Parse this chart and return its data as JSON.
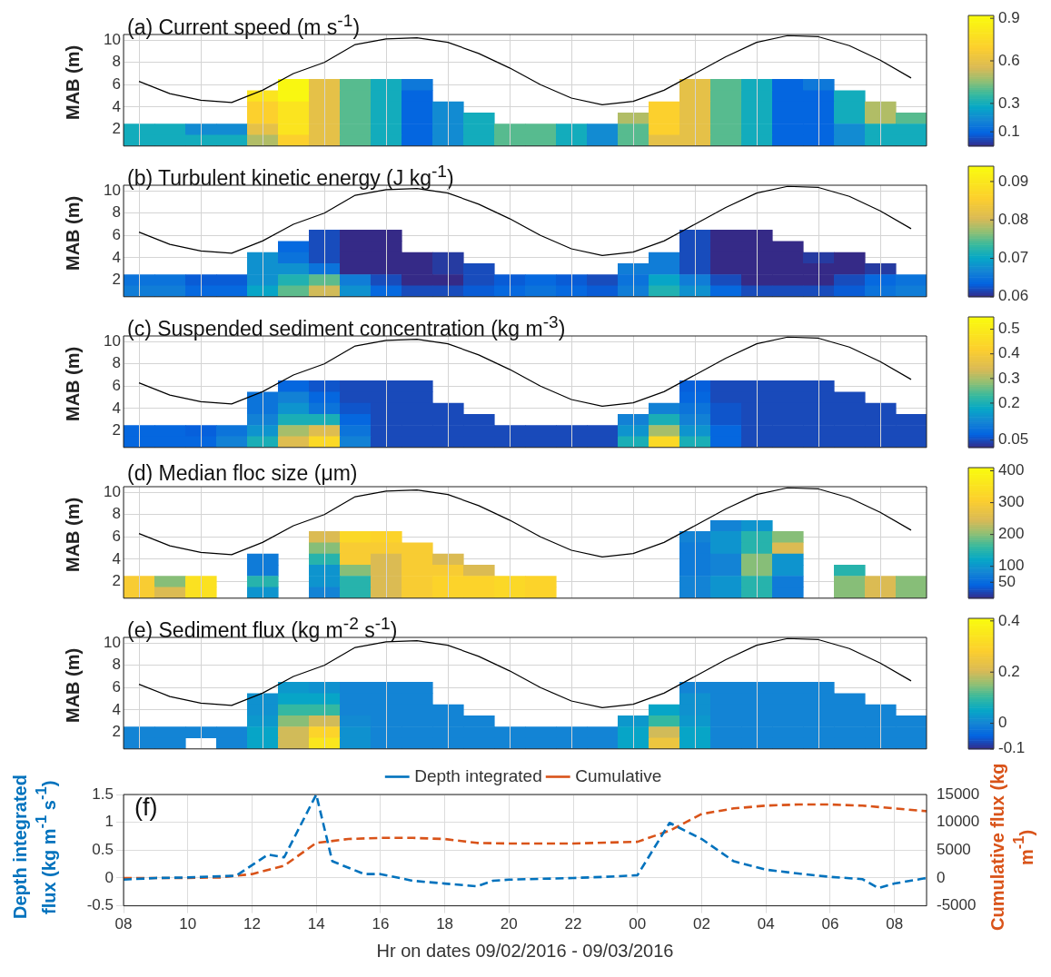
{
  "chart_data": [
    {
      "type": "heatmap",
      "title": "(a) Current speed (m s$^{-1}$)",
      "ylabel": "MAB (m)",
      "tick_labels": "y",
      "grid": "y",
      "categories": [
        null,
        null,
        null,
        null,
        null,
        null,
        null,
        null,
        null,
        null,
        null,
        null,
        null,
        null,
        null,
        null,
        null,
        null,
        null,
        null,
        null,
        null,
        null,
        null,
        null,
        null
      ],
      "y_categories": [
        "6",
        null,
        "4",
        null,
        "2",
        null
      ],
      "cells": [
        [
          null,
          null,
          null,
          null,
          null,
          0.9,
          0.6,
          0.4,
          0.3,
          0.15,
          null,
          null,
          null,
          null,
          null,
          null,
          null,
          null,
          0.6,
          0.4,
          0.3,
          0.1,
          0.15,
          null,
          null,
          null
        ],
        [
          null,
          null,
          null,
          null,
          0.8,
          0.9,
          0.6,
          0.4,
          0.3,
          0.1,
          null,
          null,
          null,
          null,
          null,
          null,
          null,
          null,
          0.6,
          0.4,
          0.3,
          0.1,
          0.1,
          0.3,
          null,
          null
        ],
        [
          null,
          null,
          null,
          null,
          0.7,
          0.8,
          0.6,
          0.4,
          0.3,
          0.1,
          0.2,
          null,
          null,
          null,
          null,
          null,
          null,
          0.7,
          0.6,
          0.4,
          0.3,
          0.1,
          0.1,
          0.3,
          0.5,
          null
        ],
        [
          null,
          null,
          null,
          null,
          0.7,
          0.8,
          0.6,
          0.4,
          0.3,
          0.1,
          0.2,
          0.3,
          null,
          null,
          null,
          null,
          0.5,
          0.7,
          0.6,
          0.4,
          0.3,
          0.1,
          0.1,
          0.3,
          0.5,
          0.4
        ],
        [
          0.3,
          0.3,
          0.2,
          0.2,
          0.6,
          0.8,
          0.6,
          0.4,
          0.3,
          0.1,
          0.2,
          0.3,
          0.4,
          0.4,
          0.3,
          0.2,
          0.4,
          0.7,
          0.6,
          0.4,
          0.3,
          0.1,
          0.1,
          0.2,
          0.3,
          0.3
        ],
        [
          0.3,
          0.3,
          0.3,
          0.3,
          0.5,
          0.7,
          0.6,
          0.4,
          0.3,
          0.1,
          0.2,
          0.3,
          0.4,
          0.4,
          0.3,
          0.2,
          0.4,
          0.6,
          0.6,
          0.4,
          0.3,
          0.1,
          0.1,
          0.2,
          0.3,
          0.3
        ]
      ],
      "clim": [
        0,
        0.92
      ],
      "cticks": [
        0.1,
        0.3,
        0.6,
        0.9
      ]
    },
    {
      "type": "line",
      "tick_labels": "y",
      "grid": true,
      "ylim": [
        0.5,
        10.5
      ],
      "yticks": [
        8,
        10
      ],
      "categories": [
        null,
        null,
        null,
        null,
        null,
        null,
        null,
        null,
        null,
        null,
        null,
        null,
        null,
        null,
        null,
        null,
        null,
        null,
        null,
        null,
        null,
        null,
        null,
        null,
        null,
        null
      ],
      "series": [
        {
          "color": "#000000",
          "values": [
            6.3,
            5.2,
            4.6,
            4.4,
            5.5,
            7,
            8,
            9.6,
            10.1,
            10.2,
            9.8,
            8.8,
            7.5,
            6,
            4.8,
            4.2,
            4.5,
            5.5,
            7,
            8.5,
            9.8,
            10.4,
            10.3,
            9.5,
            8.2,
            6.6
          ]
        }
      ]
    },
    {
      "type": "heatmap",
      "title": "(b) Turbulent kinetic energy (J kg$^{-1}$)",
      "ylabel": "MAB (m)",
      "tick_labels": "y",
      "grid": "y",
      "categories": [
        null,
        null,
        null,
        null,
        null,
        null,
        null,
        null,
        null,
        null,
        null,
        null,
        null,
        null,
        null,
        null,
        null,
        null,
        null,
        null,
        null,
        null,
        null,
        null,
        null,
        null
      ],
      "y_categories": [
        "6",
        null,
        "4",
        null,
        "2",
        null
      ],
      "cells": [
        [
          null,
          null,
          null,
          null,
          null,
          null,
          0.062,
          0.06,
          0.06,
          null,
          null,
          null,
          null,
          null,
          null,
          null,
          null,
          null,
          0.062,
          0.06,
          0.06,
          null,
          null,
          null,
          null,
          null
        ],
        [
          null,
          null,
          null,
          null,
          null,
          0.064,
          0.062,
          0.06,
          0.06,
          null,
          null,
          null,
          null,
          null,
          null,
          null,
          null,
          null,
          0.062,
          0.06,
          0.06,
          0.06,
          null,
          null,
          null,
          null
        ],
        [
          null,
          null,
          null,
          null,
          0.068,
          0.065,
          0.062,
          0.06,
          0.06,
          0.06,
          0.061,
          null,
          null,
          null,
          null,
          null,
          null,
          0.066,
          0.062,
          0.06,
          0.06,
          0.06,
          0.061,
          0.06,
          null,
          null
        ],
        [
          null,
          null,
          null,
          null,
          0.068,
          0.068,
          0.065,
          0.06,
          0.06,
          0.06,
          0.061,
          0.062,
          null,
          null,
          null,
          null,
          0.066,
          0.066,
          0.062,
          0.06,
          0.06,
          0.06,
          0.06,
          0.06,
          0.061,
          null
        ],
        [
          0.065,
          0.065,
          0.063,
          0.063,
          0.068,
          0.072,
          0.075,
          0.066,
          0.062,
          0.06,
          0.06,
          0.062,
          0.063,
          0.064,
          0.063,
          0.062,
          0.065,
          0.07,
          0.066,
          0.062,
          0.06,
          0.06,
          0.06,
          0.062,
          0.064,
          0.065
        ],
        [
          0.066,
          0.066,
          0.064,
          0.064,
          0.07,
          0.075,
          0.08,
          0.068,
          0.064,
          0.062,
          0.062,
          0.063,
          0.064,
          0.065,
          0.064,
          0.063,
          0.066,
          0.072,
          0.068,
          0.064,
          0.062,
          0.062,
          0.062,
          0.063,
          0.065,
          0.066
        ]
      ],
      "clim": [
        0.06,
        0.094
      ],
      "cticks": [
        0.06,
        0.07,
        0.08,
        0.09
      ]
    },
    {
      "type": "line",
      "tick_labels": "y",
      "grid": true,
      "ylim": [
        0.5,
        10.5
      ],
      "yticks": [
        8,
        10
      ],
      "categories": [
        null,
        null,
        null,
        null,
        null,
        null,
        null,
        null,
        null,
        null,
        null,
        null,
        null,
        null,
        null,
        null,
        null,
        null,
        null,
        null,
        null,
        null,
        null,
        null,
        null,
        null
      ],
      "series": [
        {
          "color": "#000000",
          "values": [
            6.3,
            5.2,
            4.6,
            4.4,
            5.5,
            7,
            8,
            9.6,
            10.1,
            10.2,
            9.8,
            8.8,
            7.5,
            6,
            4.8,
            4.2,
            4.5,
            5.5,
            7,
            8.5,
            9.8,
            10.4,
            10.3,
            9.5,
            8.2,
            6.6
          ]
        }
      ]
    },
    {
      "type": "heatmap",
      "title": "(c) Suspended sediment concentration (kg m$^{-3}$)",
      "ylabel": "MAB (m)",
      "tick_labels": "y",
      "grid": "y",
      "categories": [
        null,
        null,
        null,
        null,
        null,
        null,
        null,
        null,
        null,
        null,
        null,
        null,
        null,
        null,
        null,
        null,
        null,
        null,
        null,
        null,
        null,
        null,
        null,
        null,
        null,
        null
      ],
      "y_categories": [
        "6",
        null,
        "4",
        null,
        "2",
        null
      ],
      "cells": [
        [
          null,
          null,
          null,
          null,
          null,
          0.08,
          0.06,
          0.05,
          0.05,
          0.05,
          null,
          null,
          null,
          null,
          null,
          null,
          null,
          null,
          0.07,
          0.05,
          0.05,
          0.05,
          0.05,
          null,
          null,
          null
        ],
        [
          null,
          null,
          null,
          null,
          0.1,
          0.12,
          0.08,
          0.05,
          0.05,
          0.05,
          null,
          null,
          null,
          null,
          null,
          null,
          null,
          null,
          0.08,
          0.05,
          0.05,
          0.05,
          0.05,
          0.05,
          null,
          null
        ],
        [
          null,
          null,
          null,
          null,
          0.1,
          0.15,
          0.1,
          0.06,
          0.05,
          0.05,
          0.05,
          null,
          null,
          null,
          null,
          null,
          null,
          0.12,
          0.1,
          0.06,
          0.05,
          0.05,
          0.05,
          0.05,
          0.05,
          null
        ],
        [
          null,
          null,
          null,
          null,
          0.12,
          0.2,
          0.2,
          0.08,
          0.05,
          0.05,
          0.05,
          0.05,
          null,
          null,
          null,
          null,
          0.12,
          0.2,
          0.12,
          0.06,
          0.05,
          0.05,
          0.05,
          0.05,
          0.05,
          0.05
        ],
        [
          0.08,
          0.08,
          0.07,
          0.1,
          0.15,
          0.3,
          0.35,
          0.1,
          0.05,
          0.05,
          0.05,
          0.05,
          0.05,
          0.05,
          0.05,
          0.05,
          0.15,
          0.3,
          0.15,
          0.08,
          0.05,
          0.05,
          0.05,
          0.05,
          0.05,
          0.05
        ],
        [
          0.08,
          0.08,
          0.08,
          0.12,
          0.2,
          0.35,
          0.45,
          0.12,
          0.05,
          0.05,
          0.05,
          0.05,
          0.05,
          0.05,
          0.05,
          0.05,
          0.2,
          0.45,
          0.2,
          0.08,
          0.05,
          0.05,
          0.05,
          0.05,
          0.05,
          0.05
        ]
      ],
      "clim": [
        0.02,
        0.55
      ],
      "cticks": [
        0.05,
        0.2,
        0.3,
        0.4,
        0.5
      ]
    },
    {
      "type": "line",
      "tick_labels": "y",
      "grid": true,
      "ylim": [
        0.5,
        10.5
      ],
      "yticks": [
        8,
        10
      ],
      "categories": [
        null,
        null,
        null,
        null,
        null,
        null,
        null,
        null,
        null,
        null,
        null,
        null,
        null,
        null,
        null,
        null,
        null,
        null,
        null,
        null,
        null,
        null,
        null,
        null,
        null,
        null
      ],
      "series": [
        {
          "color": "#000000",
          "values": [
            6.3,
            5.2,
            4.6,
            4.4,
            5.5,
            7,
            8,
            9.6,
            10.1,
            10.2,
            9.8,
            8.8,
            7.5,
            6,
            4.8,
            4.2,
            4.5,
            5.5,
            7,
            8.5,
            9.8,
            10.4,
            10.3,
            9.5,
            8.2,
            6.6
          ]
        }
      ]
    },
    {
      "type": "heatmap",
      "title": "(d) Median floc size (μm)",
      "ylabel": "MAB (m)",
      "tick_labels": "y",
      "grid": "y",
      "categories": [
        null,
        null,
        null,
        null,
        null,
        null,
        null,
        null,
        null,
        null,
        null,
        null,
        null,
        null,
        null,
        null,
        null,
        null,
        null,
        null,
        null,
        null,
        null,
        null,
        null,
        null
      ],
      "y_categories": [
        null,
        "6",
        null,
        "4",
        null,
        "2",
        null
      ],
      "cells": [
        [
          null,
          null,
          null,
          null,
          null,
          null,
          null,
          null,
          null,
          null,
          null,
          null,
          null,
          null,
          null,
          null,
          null,
          null,
          null,
          80,
          100,
          null,
          null,
          null,
          null,
          null
        ],
        [
          null,
          null,
          null,
          null,
          null,
          null,
          250,
          330,
          320,
          null,
          null,
          null,
          null,
          null,
          null,
          null,
          null,
          null,
          80,
          100,
          150,
          200,
          null,
          null,
          null,
          null
        ],
        [
          null,
          null,
          null,
          null,
          null,
          null,
          200,
          300,
          300,
          300,
          null,
          null,
          null,
          null,
          null,
          null,
          null,
          null,
          70,
          100,
          150,
          250,
          null,
          null,
          null,
          null
        ],
        [
          null,
          null,
          null,
          null,
          70,
          null,
          150,
          300,
          250,
          300,
          250,
          null,
          null,
          null,
          null,
          null,
          null,
          null,
          70,
          80,
          200,
          100,
          null,
          null,
          null,
          null
        ],
        [
          null,
          null,
          null,
          null,
          70,
          null,
          100,
          200,
          250,
          300,
          300,
          250,
          null,
          null,
          null,
          null,
          null,
          null,
          70,
          80,
          200,
          100,
          null,
          150,
          null,
          null
        ],
        [
          300,
          200,
          350,
          null,
          150,
          null,
          100,
          150,
          250,
          300,
          320,
          320,
          330,
          320,
          null,
          null,
          null,
          null,
          80,
          100,
          150,
          70,
          null,
          200,
          250,
          200
        ],
        [
          300,
          250,
          350,
          null,
          100,
          null,
          80,
          150,
          250,
          300,
          320,
          320,
          330,
          320,
          null,
          null,
          null,
          null,
          80,
          100,
          150,
          70,
          null,
          200,
          250,
          200
        ]
      ],
      "clim": [
        0,
        410
      ],
      "cticks": [
        50,
        100,
        200,
        300,
        400
      ]
    },
    {
      "type": "line",
      "tick_labels": "y",
      "grid": true,
      "ylim": [
        0.5,
        10.5
      ],
      "yticks": [
        8,
        10
      ],
      "categories": [
        null,
        null,
        null,
        null,
        null,
        null,
        null,
        null,
        null,
        null,
        null,
        null,
        null,
        null,
        null,
        null,
        null,
        null,
        null,
        null,
        null,
        null,
        null,
        null,
        null,
        null
      ],
      "series": [
        {
          "color": "#000000",
          "values": [
            6.3,
            5.2,
            4.6,
            4.4,
            5.5,
            7,
            8,
            9.6,
            10.1,
            10.2,
            9.8,
            8.8,
            7.5,
            6,
            4.8,
            4.2,
            4.5,
            5.5,
            7,
            8.5,
            9.8,
            10.4,
            10.3,
            9.5,
            8.2,
            6.6
          ]
        }
      ]
    },
    {
      "type": "heatmap",
      "title": "(e) Sediment flux (kg m$^{-2}$ s$^{-1}$)",
      "ylabel": "MAB (m)",
      "tick_labels": "y",
      "grid": "y",
      "categories": [
        null,
        null,
        null,
        null,
        null,
        null,
        null,
        null,
        null,
        null,
        null,
        null,
        null,
        null,
        null,
        null,
        null,
        null,
        null,
        null,
        null,
        null,
        null,
        null,
        null,
        null
      ],
      "y_categories": [
        "6",
        null,
        "4",
        null,
        "2",
        null
      ],
      "cells": [
        [
          null,
          null,
          null,
          null,
          null,
          0.03,
          0.02,
          0,
          0,
          0,
          null,
          null,
          null,
          null,
          null,
          null,
          null,
          null,
          0,
          0,
          0,
          0,
          0,
          null,
          null,
          null
        ],
        [
          null,
          null,
          null,
          null,
          0.02,
          0.05,
          0.05,
          0,
          0,
          0,
          null,
          null,
          null,
          null,
          null,
          null,
          null,
          null,
          0.02,
          0,
          0,
          0,
          0,
          0,
          null,
          null
        ],
        [
          null,
          null,
          null,
          null,
          0.02,
          0.1,
          0.1,
          0,
          0,
          0,
          0,
          null,
          null,
          null,
          null,
          null,
          null,
          0.05,
          0.02,
          0,
          0,
          0,
          0,
          0,
          0,
          null
        ],
        [
          null,
          null,
          null,
          null,
          0.03,
          0.15,
          0.2,
          0.01,
          0,
          0,
          0,
          0,
          null,
          null,
          null,
          null,
          0.03,
          0.1,
          0.03,
          0,
          0,
          0,
          0,
          0,
          0,
          0
        ],
        [
          0,
          0,
          0,
          0,
          0.05,
          0.2,
          0.3,
          0.02,
          0,
          0,
          0,
          0,
          0,
          0,
          0,
          0,
          0.05,
          0.2,
          0.05,
          0,
          0,
          0,
          0,
          0,
          0,
          0
        ],
        [
          0,
          0,
          null,
          0,
          0.05,
          0.2,
          0.35,
          0.02,
          0,
          0,
          0,
          0,
          0,
          0,
          0,
          0,
          0.05,
          0.25,
          0.05,
          0,
          0,
          0,
          0,
          0,
          0,
          0
        ]
      ],
      "clim": [
        -0.1,
        0.41
      ],
      "cticks": [
        -0.1,
        0,
        0.2,
        0.4
      ]
    },
    {
      "type": "line",
      "tick_labels": "y",
      "grid": true,
      "ylim": [
        0.5,
        10.5
      ],
      "yticks": [
        8,
        10
      ],
      "categories": [
        null,
        null,
        null,
        null,
        null,
        null,
        null,
        null,
        null,
        null,
        null,
        null,
        null,
        null,
        null,
        null,
        null,
        null,
        null,
        null,
        null,
        null,
        null,
        null,
        null,
        null
      ],
      "series": [
        {
          "color": "#000000",
          "values": [
            6.3,
            5.2,
            4.6,
            4.4,
            5.5,
            7,
            8,
            9.6,
            10.1,
            10.2,
            9.8,
            8.8,
            7.5,
            6,
            4.8,
            4.2,
            4.5,
            5.5,
            7,
            8.5,
            9.8,
            10.4,
            10.3,
            9.5,
            8.2,
            6.6
          ]
        }
      ]
    },
    {
      "type": "line",
      "title": "(f)",
      "xlabel": "Hr on dates 09/02/2016 - 09/03/2016",
      "ylabel": "Depth integrated flux (kg m$^{-1}$ s$^{-1}$)",
      "y2label": "Cumulative flux (kg m$^{-1}$)",
      "grid": true,
      "legend": "top",
      "marker": "none",
      "line_style": "dashed",
      "xlim": [
        8,
        33
      ],
      "xticks": [
        {
          "value": 8,
          "label": "08"
        },
        10,
        12,
        14,
        16,
        18,
        20,
        22,
        {
          "value": 24,
          "label": "00"
        },
        {
          "value": 26,
          "label": "02"
        },
        {
          "value": 28,
          "label": "04"
        },
        {
          "value": 30,
          "label": "06"
        },
        {
          "value": 32,
          "label": "08"
        }
      ],
      "ylim": [
        -0.5,
        1.5
      ],
      "yticks": [
        -0.5,
        0,
        0.5,
        1,
        1.5
      ],
      "y2lim": [
        -5000,
        15000
      ],
      "y2ticks": [
        -5000,
        0,
        5000,
        10000,
        15000
      ],
      "series": [
        {
          "name": "Depth integrated",
          "color": "#0072bd",
          "x": [
            8,
            9,
            10,
            11,
            11.5,
            12.5,
            13,
            14,
            14.5,
            15.5,
            16,
            17,
            18,
            19,
            19.5,
            20,
            22,
            23,
            24,
            25,
            26,
            27,
            28,
            29,
            30,
            31,
            31.5,
            32,
            33
          ],
          "values": [
            -0.03,
            0,
            0.01,
            0.03,
            0.04,
            0.42,
            0.37,
            1.5,
            0.3,
            0.07,
            0.07,
            -0.05,
            -0.1,
            -0.15,
            -0.05,
            -0.03,
            0,
            0.02,
            0.05,
            0.99,
            0.7,
            0.3,
            0.15,
            0.08,
            0.02,
            -0.02,
            -0.18,
            -0.1,
            0
          ]
        },
        {
          "name": "Cumulative",
          "color": "#d95319",
          "axis": "y2",
          "x": [
            8,
            10,
            11,
            12,
            13,
            14,
            15,
            16,
            17,
            18,
            19,
            20,
            22,
            24,
            25,
            26,
            27,
            28,
            29,
            30,
            31,
            32,
            33
          ],
          "values": [
            0,
            0,
            100,
            700,
            2200,
            6300,
            7000,
            7200,
            7200,
            7000,
            6300,
            6200,
            6200,
            6500,
            8500,
            11500,
            12500,
            13000,
            13200,
            13200,
            13000,
            12500,
            12000
          ]
        }
      ]
    }
  ]
}
